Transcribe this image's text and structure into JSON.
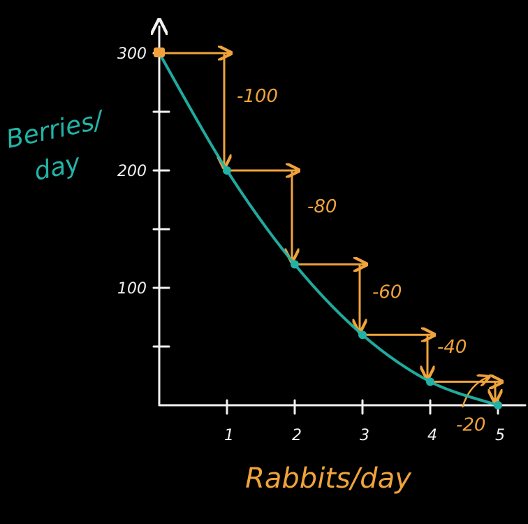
{
  "colors": {
    "background": "#000000",
    "axis": "#f2f2f2",
    "curve": "#22b3a6",
    "arrows": "#f0a33c",
    "x_label": "#f0a33c",
    "y_label": "#22b3a6"
  },
  "chart_data": {
    "type": "line",
    "xlabel": "Rabbits/day",
    "ylabel": [
      "Berries/",
      "day"
    ],
    "x": [
      0,
      1,
      2,
      3,
      4,
      5
    ],
    "y": [
      300,
      200,
      120,
      60,
      20,
      0
    ],
    "xlim": [
      0,
      5
    ],
    "ylim": [
      0,
      300
    ],
    "x_ticks": [
      {
        "value": 1,
        "label": "1"
      },
      {
        "value": 2,
        "label": "2"
      },
      {
        "value": 3,
        "label": "3"
      },
      {
        "value": 4,
        "label": "4"
      },
      {
        "value": 5,
        "label": "5"
      }
    ],
    "y_ticks": [
      {
        "value": 50,
        "label": ""
      },
      {
        "value": 100,
        "label": "100"
      },
      {
        "value": 150,
        "label": ""
      },
      {
        "value": 200,
        "label": "200"
      },
      {
        "value": 250,
        "label": ""
      },
      {
        "value": 300,
        "label": "300"
      }
    ],
    "steps": [
      {
        "from_x": 0,
        "to_x": 1,
        "change": -100,
        "label": "-100"
      },
      {
        "from_x": 1,
        "to_x": 2,
        "change": -80,
        "label": "-80"
      },
      {
        "from_x": 2,
        "to_x": 3,
        "change": -60,
        "label": "-60"
      },
      {
        "from_x": 3,
        "to_x": 4,
        "change": -40,
        "label": "-40"
      },
      {
        "from_x": 4,
        "to_x": 5,
        "change": -20,
        "label": "-20"
      }
    ],
    "grid": false,
    "legend": "none"
  }
}
